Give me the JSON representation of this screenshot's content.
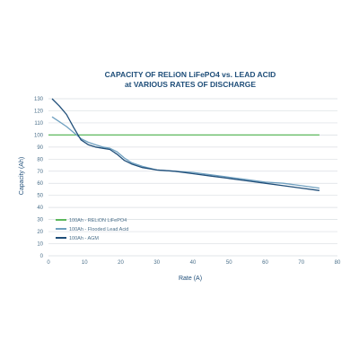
{
  "chart_data": {
    "type": "line",
    "title": "CAPACITY OF RELiON LiFePO4 vs. LEAD ACID",
    "subtitle": "at VARIOUS RATES OF DISCHARGE",
    "xlabel": "Rate (A)",
    "ylabel": "Capacity (Ah)",
    "xlim": [
      0,
      80
    ],
    "ylim": [
      0,
      130
    ],
    "xticks": [
      0,
      10,
      20,
      30,
      40,
      50,
      60,
      70,
      80
    ],
    "yticks": [
      0,
      10,
      20,
      30,
      40,
      50,
      60,
      70,
      80,
      90,
      100,
      110,
      120,
      130
    ],
    "grid": true,
    "legend_position": "bottom-left",
    "series": [
      {
        "name": "100Ah - RELiON LiFePO4",
        "color": "#5cb85c",
        "x": [
          0,
          75
        ],
        "y": [
          100,
          100
        ]
      },
      {
        "name": "100Ah - Flooded Lead Acid",
        "color": "#6fa0c0",
        "x": [
          1,
          3,
          5,
          7,
          9,
          11,
          13,
          15,
          17,
          19,
          21,
          23,
          26,
          30,
          35,
          40,
          45,
          50,
          55,
          60,
          65,
          70,
          75
        ],
        "y": [
          115,
          111,
          107,
          102,
          97,
          94,
          92,
          90,
          89,
          86,
          81,
          77,
          74,
          71,
          70,
          69,
          67,
          65,
          63,
          61,
          60,
          58,
          56
        ]
      },
      {
        "name": "100Ah - AGM",
        "color": "#1f4e79",
        "x": [
          1,
          3,
          5,
          7,
          9,
          11,
          13,
          15,
          17,
          19,
          21,
          23,
          26,
          30,
          35,
          40,
          45,
          50,
          55,
          60,
          65,
          70,
          75
        ],
        "y": [
          130,
          124,
          117,
          106,
          96,
          92,
          90,
          89,
          88,
          84,
          79,
          76,
          73,
          71,
          70,
          68,
          66,
          64,
          62,
          60,
          58,
          56,
          54
        ]
      }
    ]
  }
}
